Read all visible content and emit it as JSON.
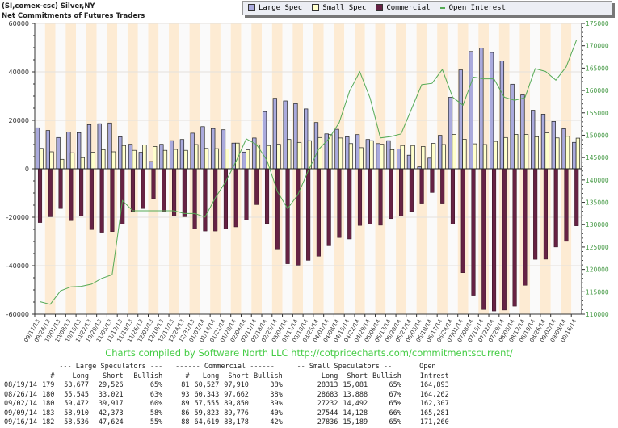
{
  "header": {
    "line1": "(SI,comex-csc) Silver,NY",
    "line2": "Net Commitments of Futures Traders"
  },
  "legend": [
    {
      "label": "Large Spec",
      "color": "#aaaadd"
    },
    {
      "label": "Small Spec",
      "color": "#ffffcc"
    },
    {
      "label": "Commercial",
      "color": "#662244"
    },
    {
      "label": "Open Interest",
      "color": "#55aa55"
    }
  ],
  "credit": "Charts compiled by Software North LLC  http://cotpricecharts.com/commitmentscurrent/",
  "chart_data": {
    "type": "bar",
    "left_axis": {
      "ylim": [
        -60000,
        60000
      ],
      "ticks": [
        "60000",
        "40000",
        "20000",
        "0",
        "-20000",
        "-40000",
        "-60000"
      ]
    },
    "right_axis": {
      "ylim": [
        110000,
        175000
      ],
      "ticks": [
        "175000",
        "170000",
        "165000",
        "160000",
        "155000",
        "150000",
        "145000",
        "140000",
        "135000",
        "130000",
        "125000",
        "120000",
        "115000",
        "110000"
      ]
    },
    "categories": [
      "09/17/13",
      "09/24/13",
      "10/01/13",
      "10/08/13",
      "10/15/13",
      "10/22/13",
      "10/29/13",
      "11/05/13",
      "11/12/13",
      "11/19/13",
      "11/26/13",
      "12/03/13",
      "12/10/13",
      "12/17/13",
      "12/24/13",
      "12/31/13",
      "01/07/14",
      "01/14/14",
      "01/21/14",
      "01/28/14",
      "02/04/14",
      "02/11/14",
      "02/18/14",
      "02/25/14",
      "03/04/14",
      "03/11/14",
      "03/18/14",
      "03/25/14",
      "04/01/14",
      "04/08/14",
      "04/15/14",
      "04/22/14",
      "04/29/14",
      "05/06/14",
      "05/13/14",
      "05/20/14",
      "05/27/14",
      "06/03/14",
      "06/10/14",
      "06/17/14",
      "06/24/14",
      "07/01/14",
      "07/08/14",
      "07/15/14",
      "07/22/14",
      "07/29/14",
      "08/05/14",
      "08/12/14",
      "08/19/14",
      "08/26/14",
      "09/02/14",
      "09/09/14",
      "09/16/14"
    ],
    "series": [
      {
        "name": "Large Spec",
        "type": "bar",
        "axis": "left",
        "values": [
          16900,
          15800,
          12900,
          15200,
          14900,
          18200,
          18600,
          18900,
          13200,
          10100,
          6800,
          3000,
          10100,
          11600,
          12100,
          14700,
          17400,
          16600,
          16100,
          10600,
          6900,
          12700,
          23600,
          29100,
          28000,
          26900,
          24700,
          19100,
          14400,
          16300,
          13200,
          14100,
          12100,
          10400,
          11600,
          8200,
          5600,
          800,
          4400,
          13800,
          29500,
          40800,
          48400,
          49800,
          48000,
          44500,
          34900,
          30500,
          24151,
          22524,
          19555,
          16537,
          10912
        ]
      },
      {
        "name": "Small Spec",
        "type": "bar",
        "axis": "left",
        "values": [
          8400,
          7000,
          3900,
          6600,
          4600,
          6800,
          7900,
          7000,
          9600,
          7600,
          9800,
          9200,
          7600,
          8000,
          7600,
          10000,
          8400,
          8300,
          8200,
          10600,
          7800,
          9900,
          9600,
          10100,
          12100,
          10900,
          11600,
          12900,
          14100,
          12700,
          10400,
          8700,
          11600,
          10100,
          7900,
          9600,
          9600,
          9200,
          10500,
          10000,
          14200,
          12200,
          10300,
          10000,
          11300,
          12900,
          14200,
          14200,
          13232,
          14795,
          12740,
          13416,
          12647
        ]
      },
      {
        "name": "Commercial",
        "type": "bar",
        "axis": "left",
        "values": [
          -22200,
          -19800,
          -16400,
          -21400,
          -19400,
          -25100,
          -26200,
          -25900,
          -22900,
          -17600,
          -16400,
          -12300,
          -17800,
          -19400,
          -19800,
          -24800,
          -25700,
          -25700,
          -24800,
          -24000,
          -21100,
          -14800,
          -22600,
          -33100,
          -39200,
          -39800,
          -37800,
          -36100,
          -31800,
          -28400,
          -29000,
          -23400,
          -22900,
          -23300,
          -20600,
          -19400,
          -17600,
          -14200,
          -9800,
          -14200,
          -22900,
          -42900,
          -52200,
          -58100,
          -58700,
          -58300,
          -56700,
          -48100,
          -37383,
          -37319,
          -32295,
          -29953,
          -23559
        ]
      },
      {
        "name": "Open Interest",
        "type": "line",
        "axis": "right",
        "values": [
          112800,
          112200,
          115200,
          116100,
          116200,
          116700,
          118000,
          118800,
          135400,
          133100,
          133100,
          133100,
          133100,
          133100,
          132500,
          132500,
          131700,
          136000,
          139600,
          144100,
          149200,
          147900,
          144400,
          137500,
          133600,
          136700,
          142000,
          146800,
          149200,
          152800,
          159800,
          164200,
          158300,
          149400,
          149700,
          150300,
          155800,
          161300,
          161600,
          164700,
          158500,
          156700,
          163000,
          162600,
          162600,
          158500,
          157800,
          158400,
          164893,
          164262,
          162307,
          165281,
          171260
        ]
      }
    ],
    "grid": true
  },
  "table": {
    "groups": [
      "--- Large Speculators ---",
      "------ Commercial ------",
      "-- Small Speculators --",
      "Open"
    ],
    "headers": [
      "",
      "#",
      "Long",
      "Short",
      "Bullish",
      "#",
      "Long",
      "Short",
      "Bullish",
      "Long",
      "Short",
      "Bullish",
      "Intrest"
    ],
    "rows": [
      [
        "08/19/14",
        "179",
        "53,677",
        "29,526",
        "65%",
        "81",
        "60,527",
        "97,910",
        "38%",
        "28313",
        "15,081",
        "65%",
        "164,893"
      ],
      [
        "08/26/14",
        "180",
        "55,545",
        "33,021",
        "63%",
        "93",
        "60,343",
        "97,662",
        "38%",
        "28683",
        "13,888",
        "67%",
        "164,262"
      ],
      [
        "09/02/14",
        "180",
        "59,472",
        "39,917",
        "60%",
        "89",
        "57,555",
        "89,850",
        "39%",
        "27232",
        "14,492",
        "65%",
        "162,307"
      ],
      [
        "09/09/14",
        "183",
        "58,910",
        "42,373",
        "58%",
        "86",
        "59,823",
        "89,776",
        "40%",
        "27544",
        "14,128",
        "66%",
        "165,281"
      ],
      [
        "09/16/14",
        "182",
        "58,536",
        "47,624",
        "55%",
        "88",
        "64,619",
        "88,178",
        "42%",
        "27836",
        "15,189",
        "65%",
        "171,260"
      ]
    ]
  }
}
